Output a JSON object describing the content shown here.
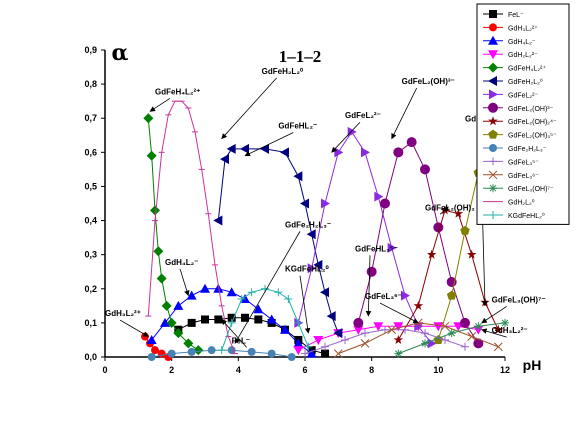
{
  "chart_data": {
    "type": "line",
    "title": "1–1–2",
    "ylabel": "α",
    "xlabel": "pH",
    "xlim": [
      0,
      12
    ],
    "ylim": [
      0,
      0.9
    ],
    "x_ticks": [
      "0",
      "2",
      "4",
      "6",
      "8",
      "10",
      "12"
    ],
    "y_ticks": [
      "0,0",
      "0,1",
      "0,2",
      "0,3",
      "0,4",
      "0,5",
      "0,6",
      "0,7",
      "0,8",
      "0,9"
    ],
    "legend_position": "top-right",
    "series": [
      {
        "name": "FeL⁻",
        "color": "#000000",
        "marker": "square",
        "points": [
          [
            2.2,
            0.08
          ],
          [
            2.6,
            0.1
          ],
          [
            3,
            0.11
          ],
          [
            3.4,
            0.11
          ],
          [
            3.8,
            0.115
          ],
          [
            4.2,
            0.115
          ],
          [
            4.6,
            0.11
          ],
          [
            5,
            0.1
          ],
          [
            5.4,
            0.08
          ],
          [
            5.8,
            0.05
          ],
          [
            6.2,
            0.02
          ],
          [
            6.6,
            0.01
          ]
        ]
      },
      {
        "name": "GdH₃L₂²⁺",
        "color": "#ff0000",
        "marker": "circle",
        "points": [
          [
            1.2,
            0.06
          ],
          [
            1.35,
            0.04
          ],
          [
            1.5,
            0.02
          ],
          [
            1.7,
            0.01
          ],
          [
            1.9,
            0.0
          ]
        ]
      },
      {
        "name": "GdH₄L₂⁻",
        "color": "#0000ff",
        "marker": "triangle-up",
        "points": [
          [
            1.4,
            0.05
          ],
          [
            1.8,
            0.1
          ],
          [
            2.2,
            0.15
          ],
          [
            2.6,
            0.18
          ],
          [
            3,
            0.2
          ],
          [
            3.4,
            0.2
          ],
          [
            3.8,
            0.19
          ],
          [
            4.2,
            0.17
          ],
          [
            4.6,
            0.14
          ],
          [
            5,
            0.11
          ],
          [
            5.4,
            0.08
          ],
          [
            5.8,
            0.04
          ],
          [
            6.2,
            0.01
          ]
        ]
      },
      {
        "name": "GdH₂L₂²⁻",
        "color": "#ff00ff",
        "marker": "triangle-down",
        "points": [
          [
            5.8,
            0.02
          ],
          [
            6.4,
            0.05
          ],
          [
            7,
            0.07
          ],
          [
            7.6,
            0.08
          ],
          [
            8.2,
            0.09
          ],
          [
            8.8,
            0.09
          ],
          [
            9.4,
            0.09
          ],
          [
            10,
            0.09
          ],
          [
            10.6,
            0.09
          ],
          [
            11.2,
            0.08
          ]
        ]
      },
      {
        "name": "GdFeH₄L₂²⁺",
        "color": "#008000",
        "marker": "diamond",
        "points": [
          [
            1.3,
            0.7
          ],
          [
            1.4,
            0.59
          ],
          [
            1.5,
            0.43
          ],
          [
            1.6,
            0.31
          ],
          [
            1.7,
            0.23
          ],
          [
            1.85,
            0.15
          ],
          [
            2,
            0.1
          ],
          [
            2.2,
            0.07
          ],
          [
            2.5,
            0.04
          ],
          [
            2.8,
            0.02
          ]
        ]
      },
      {
        "name": "GdFeH₂L₂⁰",
        "color": "#000080",
        "marker": "triangle-left",
        "points": [
          [
            3.4,
            0.4
          ],
          [
            3.6,
            0.58
          ],
          [
            3.8,
            0.61
          ],
          [
            4.2,
            0.61
          ],
          [
            4.8,
            0.61
          ],
          [
            5.4,
            0.6
          ],
          [
            5.8,
            0.53
          ],
          [
            6,
            0.45
          ],
          [
            6.2,
            0.36
          ],
          [
            6.4,
            0.27
          ],
          [
            6.6,
            0.19
          ],
          [
            6.8,
            0.12
          ],
          [
            7,
            0.07
          ]
        ]
      },
      {
        "name": "GdFeL₂²⁻",
        "color": "#8a2be2",
        "marker": "triangle-right",
        "points": [
          [
            5.8,
            0.1
          ],
          [
            6.2,
            0.26
          ],
          [
            6.6,
            0.45
          ],
          [
            7,
            0.6
          ],
          [
            7.4,
            0.66
          ],
          [
            7.8,
            0.6
          ],
          [
            8.2,
            0.47
          ],
          [
            8.6,
            0.32
          ],
          [
            9,
            0.18
          ],
          [
            9.4,
            0.09
          ],
          [
            9.8,
            0.04
          ]
        ]
      },
      {
        "name": "GdFeL₂(OH)³⁻",
        "color": "#800080",
        "marker": "hexagon",
        "points": [
          [
            7.6,
            0.1
          ],
          [
            8,
            0.25
          ],
          [
            8.4,
            0.45
          ],
          [
            8.8,
            0.6
          ],
          [
            9.2,
            0.63
          ],
          [
            9.6,
            0.55
          ],
          [
            10,
            0.38
          ],
          [
            10.4,
            0.22
          ],
          [
            10.8,
            0.1
          ],
          [
            11.2,
            0.04
          ]
        ]
      },
      {
        "name": "GdFeL₂(OH)₂⁴⁻",
        "color": "#8b0000",
        "marker": "star",
        "points": [
          [
            8.8,
            0.05
          ],
          [
            9.4,
            0.15
          ],
          [
            9.8,
            0.3
          ],
          [
            10.2,
            0.43
          ],
          [
            10.6,
            0.42
          ],
          [
            11,
            0.3
          ],
          [
            11.4,
            0.16
          ],
          [
            11.8,
            0.08
          ]
        ]
      },
      {
        "name": "GdFeL₂(OH)₃⁵⁻",
        "color": "#808000",
        "marker": "pentagon",
        "points": [
          [
            10,
            0.05
          ],
          [
            10.4,
            0.18
          ],
          [
            10.8,
            0.37
          ],
          [
            11.2,
            0.54
          ],
          [
            11.6,
            0.62
          ],
          [
            12,
            0.66
          ]
        ]
      },
      {
        "name": "GdFe₂H₂L₃⁻",
        "color": "#4682b4",
        "marker": "circle",
        "points": [
          [
            1.4,
            0.0
          ],
          [
            2,
            0.01
          ],
          [
            2.6,
            0.015
          ],
          [
            3.2,
            0.02
          ],
          [
            3.8,
            0.02
          ],
          [
            4.4,
            0.015
          ],
          [
            5,
            0.01
          ],
          [
            5.6,
            0.0
          ]
        ]
      },
      {
        "name": "GdFeL₃⁵⁻",
        "color": "#9966cc",
        "marker": "plus",
        "points": [
          [
            6,
            0.01
          ],
          [
            6.6,
            0.03
          ],
          [
            7.2,
            0.05
          ],
          [
            7.8,
            0.07
          ],
          [
            8.4,
            0.08
          ],
          [
            9,
            0.08
          ],
          [
            9.6,
            0.07
          ],
          [
            10.2,
            0.05
          ],
          [
            10.8,
            0.03
          ]
        ]
      },
      {
        "name": "GdFeL₃⁶⁻",
        "color": "#a0522d",
        "marker": "x",
        "points": [
          [
            7,
            0.01
          ],
          [
            7.8,
            0.04
          ],
          [
            8.6,
            0.08
          ],
          [
            9.4,
            0.1
          ],
          [
            10.2,
            0.09
          ],
          [
            11,
            0.06
          ],
          [
            11.8,
            0.03
          ]
        ]
      },
      {
        "name": "GdFeL₃(OH)⁷⁻",
        "color": "#2e8b57",
        "marker": "asterisk",
        "points": [
          [
            8.8,
            0.01
          ],
          [
            9.6,
            0.04
          ],
          [
            10.4,
            0.07
          ],
          [
            11.2,
            0.09
          ],
          [
            12,
            0.1
          ]
        ]
      },
      {
        "name": "GdH₂L₂⁰",
        "color": "#cc3399",
        "marker": "line",
        "points": [
          [
            1.3,
            0.12
          ],
          [
            1.5,
            0.4
          ],
          [
            1.7,
            0.6
          ],
          [
            1.9,
            0.71
          ],
          [
            2.1,
            0.75
          ],
          [
            2.3,
            0.75
          ],
          [
            2.5,
            0.73
          ],
          [
            2.7,
            0.66
          ],
          [
            2.9,
            0.55
          ],
          [
            3.1,
            0.42
          ],
          [
            3.3,
            0.27
          ],
          [
            3.5,
            0.15
          ],
          [
            3.7,
            0.06
          ],
          [
            3.9,
            0.01
          ]
        ]
      },
      {
        "name": "KGdFeHL₂⁰",
        "color": "#20b2aa",
        "marker": "plus",
        "points": [
          [
            3.5,
            0.02
          ],
          [
            3.8,
            0.1
          ],
          [
            4.1,
            0.17
          ],
          [
            4.4,
            0.19
          ],
          [
            4.8,
            0.2
          ],
          [
            5.2,
            0.19
          ],
          [
            5.5,
            0.17
          ],
          [
            5.8,
            0.1
          ],
          [
            6.1,
            0.03
          ]
        ]
      }
    ],
    "annotations": [
      {
        "id": "gdfeh4l2",
        "text": "GdFeH₄L₂²⁺",
        "x": 1.5,
        "y": 0.77,
        "tx": 1.35,
        "ty": 0.72
      },
      {
        "id": "gdh2l2",
        "text": "GdFeH₂L₂⁰",
        "x": 4.7,
        "y": 0.83,
        "tx": 3.5,
        "ty": 0.64
      },
      {
        "id": "gdfel2",
        "text": "GdFeL₂²⁻",
        "x": 7.2,
        "y": 0.7,
        "tx": 6.8,
        "ty": 0.6
      },
      {
        "id": "gdfel2oh",
        "text": "GdFeL₂(OH)³⁻",
        "x": 8.9,
        "y": 0.8,
        "tx": 8.6,
        "ty": 0.64
      },
      {
        "id": "gdfehl2",
        "text": "GdFeHL₂⁻",
        "x": 5.2,
        "y": 0.67,
        "tx": 4.2,
        "ty": 0.59
      },
      {
        "id": "gdfel2oh3",
        "text": "GdFeL₂(OH)₃⁵⁻",
        "x": 10.8,
        "y": 0.69,
        "tx": 11.4,
        "ty": 0.15
      },
      {
        "id": "gdfel2oh2",
        "text": "GdFeL₂(OH)₂",
        "x": 9.6,
        "y": 0.43,
        "tx": 10.3,
        "ty": 0.44
      },
      {
        "id": "gdfehl3",
        "text": "GdFeHL₃⁵⁻",
        "x": 7.5,
        "y": 0.31,
        "tx": 7.9,
        "ty": 0.12
      },
      {
        "id": "gdfe2h2l3",
        "text": "GdFe₂H₂L₃⁻",
        "x": 5.4,
        "y": 0.38,
        "tx": 3.9,
        "ty": 0.04
      },
      {
        "id": "kgdfehl2",
        "text": "KGdFeHL₂⁰",
        "x": 5.4,
        "y": 0.25,
        "tx": 6.1,
        "ty": 0.07
      },
      {
        "id": "gdh4l2",
        "text": "GdH₄L₂⁻",
        "x": 1.8,
        "y": 0.27,
        "tx": 2.5,
        "ty": 0.18
      },
      {
        "id": "gdh3l2",
        "text": "GdH₃L₂²⁺",
        "x": 0.0,
        "y": 0.12,
        "tx": 1.3,
        "ty": 0.06
      },
      {
        "id": "fel",
        "text": "FeL⁻",
        "x": 3.8,
        "y": 0.04,
        "tx": 3.5,
        "ty": 0.11
      },
      {
        "id": "gdfel3",
        "text": "GdFeL₃⁶⁻",
        "x": 7.8,
        "y": 0.17,
        "tx": 9.4,
        "ty": 0.1
      },
      {
        "id": "gdfel3oh",
        "text": "GdFeL₃(OH)⁷⁻",
        "x": 11.6,
        "y": 0.16,
        "tx": 11.3,
        "ty": 0.1
      },
      {
        "id": "gdh3l2b",
        "text": "GdH₃L₂²⁻",
        "x": 11.6,
        "y": 0.07,
        "tx": 11.3,
        "ty": 0.08
      }
    ]
  }
}
